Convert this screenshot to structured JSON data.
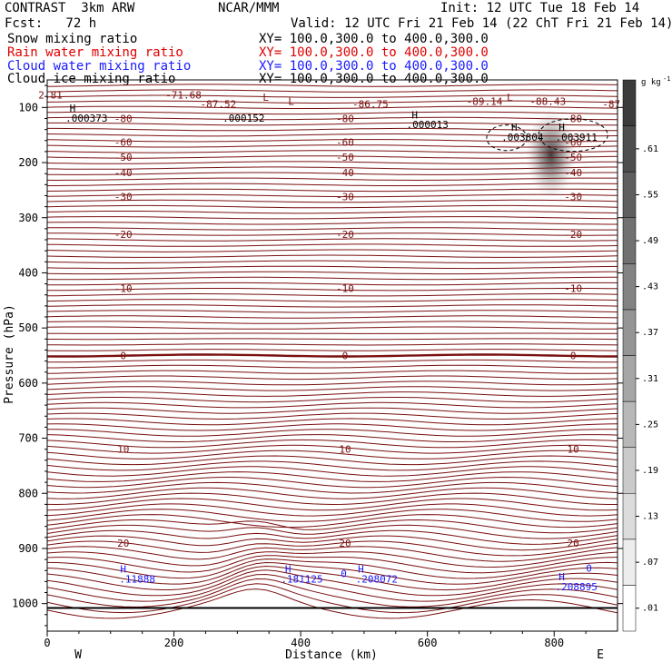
{
  "header": {
    "model": "CONTRAST  3km ARW",
    "org": "NCAR/MMM",
    "init": "Init: 12 UTC Tue 18 Feb 14",
    "fcst": "Fcst:   72 h",
    "valid": "Valid: 12 UTC Fri 21 Feb 14 (22 ChT Fri 21 Feb 14)"
  },
  "fields": [
    {
      "name": "Snow mixing ratio",
      "xy": "XY= 100.0,300.0 to 400.0,300.0",
      "color": "#000000"
    },
    {
      "name": "Rain water mixing ratio",
      "xy": "XY= 100.0,300.0 to 400.0,300.0",
      "color": "#e00000"
    },
    {
      "name": "Cloud water mixing ratio",
      "xy": "XY= 100.0,300.0 to 400.0,300.0",
      "color": "#1a1aff"
    },
    {
      "name": "Cloud ice mixing ratio",
      "xy": "XY= 100.0,300.0 to 400.0,300.0",
      "color": "#000000"
    }
  ],
  "chart_data": {
    "type": "contour-cross-section",
    "xlabel": "Distance (km)",
    "ylabel": "Pressure (hPa)",
    "xlim": [
      0,
      900
    ],
    "ylim": [
      1050,
      50
    ],
    "xticks": [
      "0",
      "200",
      "400",
      "600",
      "800"
    ],
    "xtick_values": [
      0,
      200,
      400,
      600,
      800
    ],
    "yticks": [
      "100",
      "200",
      "300",
      "400",
      "500",
      "600",
      "700",
      "800",
      "900",
      "1000"
    ],
    "ytick_values": [
      100,
      200,
      300,
      400,
      500,
      600,
      700,
      800,
      900,
      1000
    ],
    "direction_left": "W",
    "direction_right": "E",
    "colorbar": {
      "unit": "g kg",
      "unit_exp": "-1",
      "levels": [
        ".01",
        ".07",
        ".13",
        ".19",
        ".25",
        ".31",
        ".37",
        ".43",
        ".49",
        ".55",
        ".61"
      ],
      "level_values": [
        0.01,
        0.07,
        0.13,
        0.19,
        0.25,
        0.31,
        0.37,
        0.43,
        0.49,
        0.55,
        0.61
      ]
    },
    "temperature_contours": [
      {
        "value": -80,
        "label": "-80",
        "p": 120,
        "colorHex": "#7a1010"
      },
      {
        "value": -60,
        "label": "-60",
        "p": 163
      },
      {
        "value": -50,
        "label": "-50",
        "p": 190
      },
      {
        "value": -40,
        "label": "-40",
        "p": 218
      },
      {
        "value": -30,
        "label": "-30",
        "p": 262
      },
      {
        "value": -20,
        "label": "-20",
        "p": 330
      },
      {
        "value": -10,
        "label": "-10",
        "p": 428
      },
      {
        "value": 0,
        "label": "0",
        "p": 550
      },
      {
        "value": 10,
        "label": "10",
        "p": 720
      },
      {
        "value": 20,
        "label": "20",
        "p": 890
      }
    ],
    "extrema_labels": [
      {
        "text": "2.81",
        "x": 5,
        "p": 84,
        "color": "#7a1010"
      },
      {
        "text": "-71.68",
        "x": 215,
        "p": 84,
        "color": "#7a1010"
      },
      {
        "text": "L",
        "x": 345,
        "p": 88,
        "color": "#7a1010"
      },
      {
        "text": "-87.52",
        "x": 270,
        "p": 100,
        "color": "#7a1010"
      },
      {
        "text": "-86.75",
        "x": 510,
        "p": 100,
        "color": "#7a1010"
      },
      {
        "text": "L",
        "x": 385,
        "p": 95,
        "color": "#7a1010"
      },
      {
        "text": "-89.14",
        "x": 690,
        "p": 95,
        "color": "#7a1010"
      },
      {
        "text": "L",
        "x": 730,
        "p": 88,
        "color": "#7a1010"
      },
      {
        "text": "-88.43",
        "x": 790,
        "p": 95,
        "color": "#7a1010"
      },
      {
        "text": "-87.",
        "x": 895,
        "p": 100,
        "color": "#7a1010"
      },
      {
        "text": "H",
        "x": 40,
        "p": 108,
        "color": "#000000"
      },
      {
        "text": ".000373",
        "x": 62,
        "p": 126,
        "color": "#000000"
      },
      {
        "text": ".000152",
        "x": 310,
        "p": 126,
        "color": "#000000"
      },
      {
        "text": "H",
        "x": 580,
        "p": 120,
        "color": "#000000"
      },
      {
        "text": ".000013",
        "x": 600,
        "p": 137,
        "color": "#000000"
      },
      {
        "text": "H",
        "x": 737,
        "p": 142,
        "color": "#000000"
      },
      {
        "text": ".003804",
        "x": 750,
        "p": 160,
        "color": "#000000"
      },
      {
        "text": "H",
        "x": 812,
        "p": 142,
        "color": "#000000"
      },
      {
        "text": ".003911",
        "x": 835,
        "p": 160,
        "color": "#000000"
      },
      {
        "text": "H",
        "x": 120,
        "p": 944,
        "color": "#1a1aff"
      },
      {
        "text": ".11888",
        "x": 142,
        "p": 962,
        "color": "#1a1aff"
      },
      {
        "text": "H",
        "x": 380,
        "p": 944,
        "color": "#1a1aff"
      },
      {
        "text": ".181125",
        "x": 402,
        "p": 962,
        "color": "#1a1aff"
      },
      {
        "text": "0",
        "x": 468,
        "p": 952,
        "color": "#1a1aff"
      },
      {
        "text": "H",
        "x": 495,
        "p": 944,
        "color": "#1a1aff"
      },
      {
        "text": ".208072",
        "x": 520,
        "p": 962,
        "color": "#1a1aff"
      },
      {
        "text": "H",
        "x": 812,
        "p": 958,
        "color": "#1a1aff"
      },
      {
        "text": ".208895",
        "x": 835,
        "p": 976,
        "color": "#1a1aff"
      },
      {
        "text": "0",
        "x": 855,
        "p": 942,
        "color": "#1a1aff"
      }
    ]
  }
}
